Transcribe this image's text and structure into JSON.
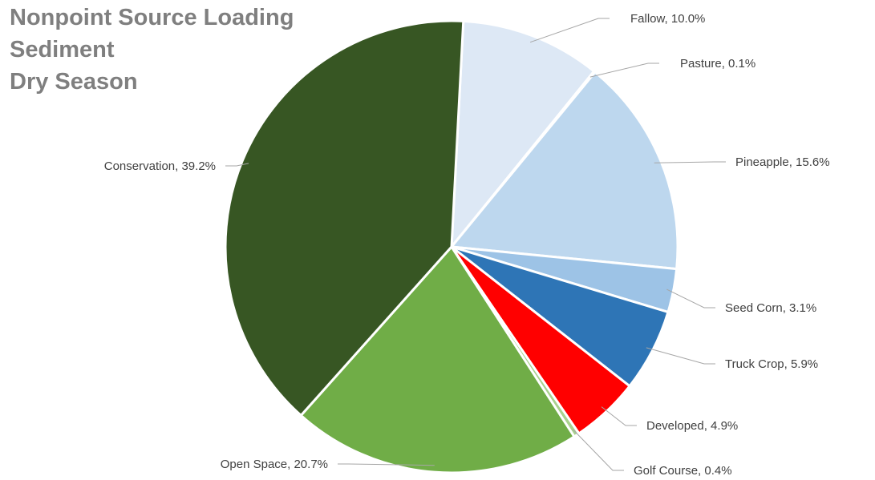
{
  "chart_data": {
    "type": "pie",
    "title": [
      "Nonpoint Source Loading",
      "Sediment",
      "Dry Season"
    ],
    "legend": "none",
    "start_angle_deg": 3,
    "slices": [
      {
        "name": "Fallow",
        "value": 10.0,
        "label": "Fallow, 10.0%",
        "color": "#dde8f5"
      },
      {
        "name": "Pasture",
        "value": 0.1,
        "label": "Pasture, 0.1%",
        "color": "#dde8f5"
      },
      {
        "name": "Pineapple",
        "value": 15.6,
        "label": "Pineapple, 15.6%",
        "color": "#bdd7ee"
      },
      {
        "name": "Seed Corn",
        "value": 3.1,
        "label": "Seed Corn, 3.1%",
        "color": "#9dc3e6"
      },
      {
        "name": "Truck Crop",
        "value": 5.9,
        "label": "Truck Crop, 5.9%",
        "color": "#2e75b6"
      },
      {
        "name": "Developed",
        "value": 4.9,
        "label": "Developed, 4.9%",
        "color": "#ff0000"
      },
      {
        "name": "Golf Course",
        "value": 0.4,
        "label": "Golf Course, 0.4%",
        "color": "#a9d18e"
      },
      {
        "name": "Open Space",
        "value": 20.7,
        "label": "Open Space, 20.7%",
        "color": "#70ad47"
      },
      {
        "name": "Conservation",
        "value": 39.2,
        "label": "Conservation, 39.2%",
        "color": "#375623"
      }
    ]
  }
}
